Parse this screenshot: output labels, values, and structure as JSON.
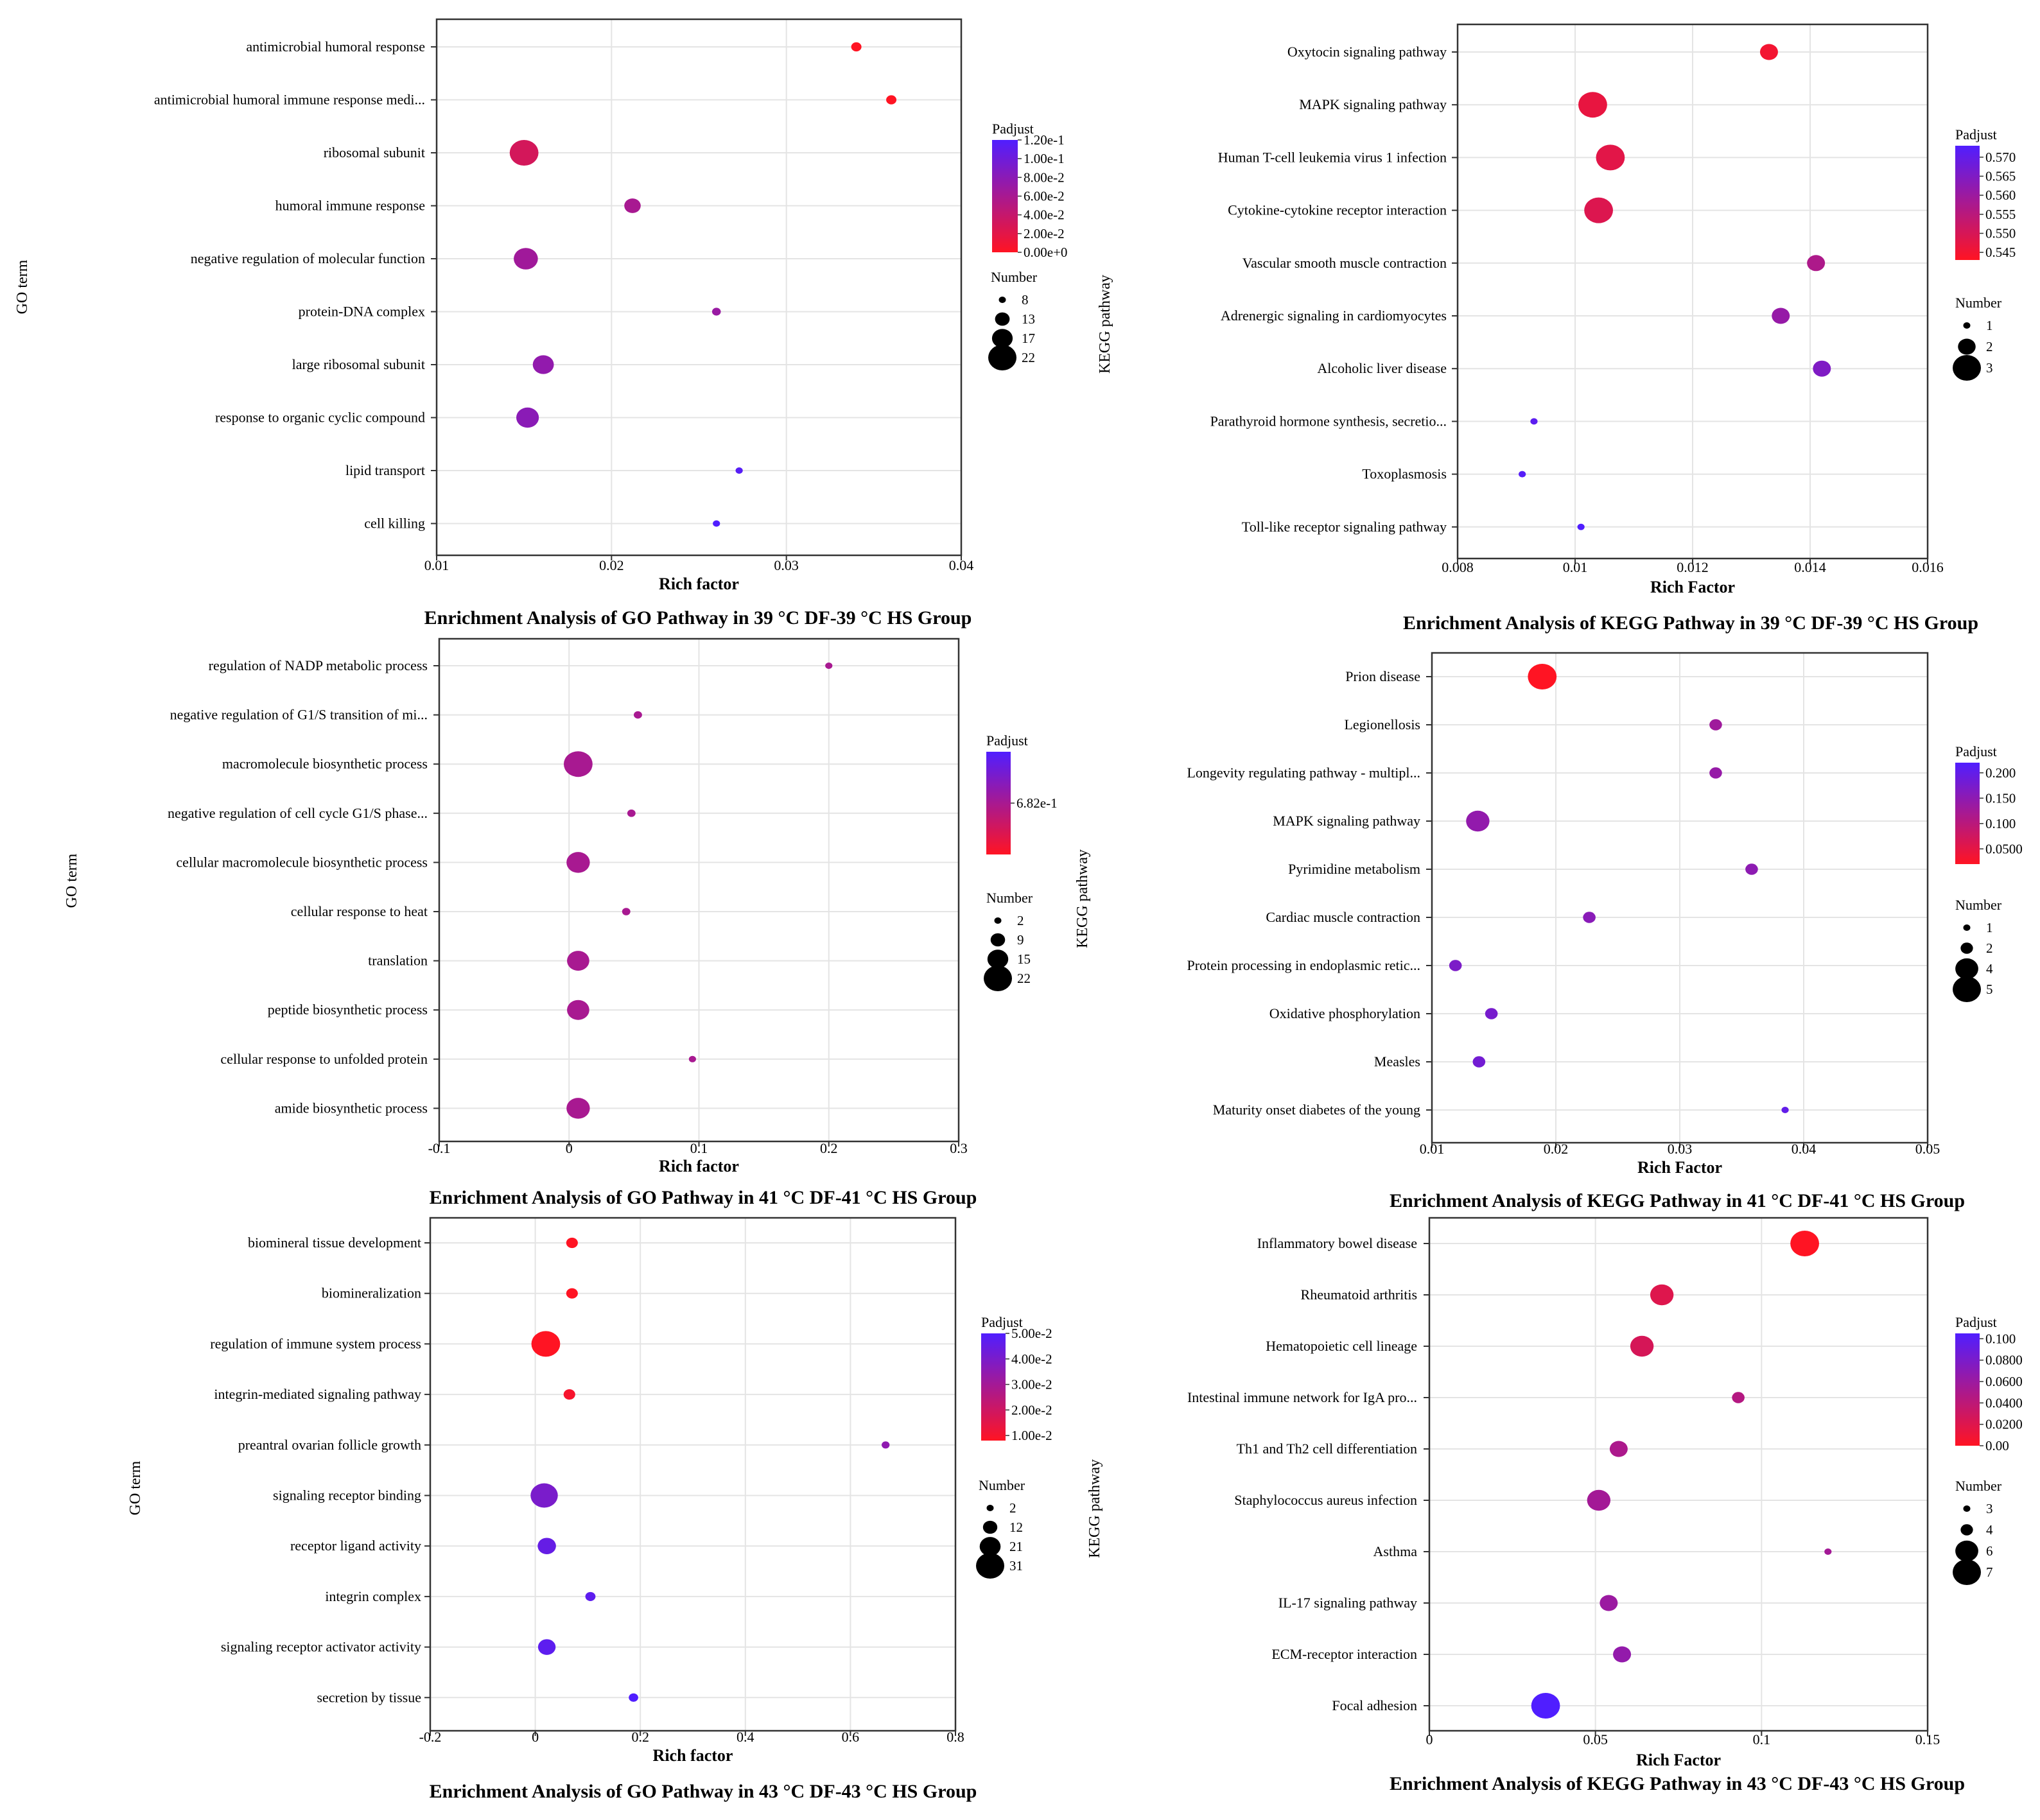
{
  "chart_data": [
    {
      "type": "scatter",
      "title": "Enrichment Analysis of GO Pathway in 39 °C DF-39 °C HS Group",
      "xlabel": "Rich factor",
      "ylabel": "GO term",
      "xlim": [
        0.01,
        0.04
      ],
      "xticks": [
        0.01,
        0.02,
        0.03,
        0.04
      ],
      "xtick_labels": [
        "0.01",
        "0.02",
        "0.03",
        "0.04"
      ],
      "grid": true,
      "categories": [
        "antimicrobial humoral response",
        "antimicrobial humoral immune response medi...",
        "ribosomal subunit",
        "humoral immune response",
        "negative regulation of molecular function",
        "protein-DNA complex",
        "large ribosomal subunit",
        "response to organic cyclic compound",
        "lipid transport",
        "cell killing"
      ],
      "x": [
        0.034,
        0.036,
        0.015,
        0.0212,
        0.0151,
        0.026,
        0.0161,
        0.0152,
        0.0273,
        0.026
      ],
      "padjust": [
        0.0,
        0.0,
        0.03,
        0.06,
        0.065,
        0.07,
        0.075,
        0.08,
        0.115,
        0.12
      ],
      "number": [
        10,
        10,
        22,
        14,
        19,
        9,
        17,
        18,
        8,
        8
      ],
      "color_legend": {
        "title": "Padjust",
        "min": 0.0,
        "max": 0.12,
        "tick_values": [
          0.12,
          0.1,
          0.08,
          0.06,
          0.04,
          0.02,
          0.0
        ],
        "tick_labels": [
          "1.20e-1",
          "1.00e-1",
          "8.00e-2",
          "6.00e-2",
          "4.00e-2",
          "2.00e-2",
          "0.00e+0"
        ]
      },
      "size_legend": {
        "title": "Number",
        "values": [
          8,
          13,
          17,
          22
        ],
        "labels": [
          "8",
          "13",
          "17",
          "22"
        ]
      }
    },
    {
      "type": "scatter",
      "title": "Enrichment Analysis of KEGG Pathway in 39 °C DF-39 °C HS Group",
      "xlabel": "Rich Factor",
      "ylabel": "KEGG pathway",
      "xlim": [
        0.008,
        0.016
      ],
      "xticks": [
        0.008,
        0.01,
        0.012,
        0.014,
        0.016
      ],
      "xtick_labels": [
        "0.008",
        "0.01",
        "0.012",
        "0.014",
        "0.016"
      ],
      "grid": true,
      "categories": [
        "Oxytocin signaling pathway",
        "MAPK signaling pathway",
        "Human T-cell leukemia virus 1 infection",
        "Cytokine-cytokine receptor interaction",
        "Vascular smooth muscle contraction",
        "Adrenergic signaling in cardiomyocytes",
        "Alcoholic liver disease",
        "Parathyroid hormone synthesis, secretio...",
        "Toxoplasmosis",
        "Toll-like receptor signaling pathway"
      ],
      "x": [
        0.0133,
        0.0103,
        0.0106,
        0.0104,
        0.0141,
        0.0135,
        0.0142,
        0.0093,
        0.0091,
        0.0101
      ],
      "padjust": [
        0.545,
        0.547,
        0.548,
        0.549,
        0.557,
        0.561,
        0.565,
        0.571,
        0.572,
        0.573
      ],
      "number": [
        2,
        3,
        3,
        3,
        2,
        2,
        2,
        1,
        1,
        1
      ],
      "color_legend": {
        "title": "Padjust",
        "min": 0.543,
        "max": 0.573,
        "tick_values": [
          0.57,
          0.565,
          0.56,
          0.555,
          0.55,
          0.545
        ],
        "tick_labels": [
          "0.570",
          "0.565",
          "0.560",
          "0.555",
          "0.550",
          "0.545"
        ]
      },
      "size_legend": {
        "title": "Number",
        "values": [
          1,
          2,
          3
        ],
        "labels": [
          "1",
          "2",
          "3"
        ]
      }
    },
    {
      "type": "scatter",
      "title": "Enrichment Analysis of GO Pathway in 41 °C DF-41 °C HS Group",
      "xlabel": "Rich factor",
      "ylabel": "GO term",
      "xlim": [
        -0.1,
        0.3
      ],
      "xticks": [
        -0.1,
        0,
        0.1,
        0.2,
        0.3
      ],
      "xtick_labels": [
        "-0.1",
        "0",
        "0.1",
        "0.2",
        "0.3"
      ],
      "grid": true,
      "categories": [
        "regulation of NADP metabolic process",
        "negative regulation of G1/S transition of mi...",
        "macromolecule biosynthetic process",
        "negative regulation of cell cycle G1/S phase...",
        "cellular macromolecule biosynthetic process",
        "cellular response to heat",
        "translation",
        "peptide biosynthetic process",
        "cellular response to unfolded protein",
        "amide biosynthetic process"
      ],
      "x": [
        0.2,
        0.053,
        0.007,
        0.048,
        0.007,
        0.044,
        0.007,
        0.007,
        0.095,
        0.007
      ],
      "padjust": [
        0.682,
        0.682,
        0.682,
        0.682,
        0.682,
        0.682,
        0.682,
        0.682,
        0.682,
        0.682
      ],
      "number": [
        2,
        3,
        22,
        3,
        17,
        3,
        16,
        16,
        2,
        17
      ],
      "color_legend": {
        "title": "Padjust",
        "min": 0.68,
        "max": 0.684,
        "tick_values": [
          0.682
        ],
        "tick_labels": [
          "6.82e-1"
        ]
      },
      "size_legend": {
        "title": "Number",
        "values": [
          2,
          9,
          15,
          22
        ],
        "labels": [
          "2",
          "9",
          "15",
          "22"
        ]
      }
    },
    {
      "type": "scatter",
      "title": "Enrichment Analysis of KEGG Pathway in 41 °C DF-41 °C HS Group",
      "xlabel": "Rich Factor",
      "ylabel": "KEGG pathway",
      "xlim": [
        0.01,
        0.05
      ],
      "xticks": [
        0.01,
        0.02,
        0.03,
        0.04,
        0.05
      ],
      "xtick_labels": [
        "0.01",
        "0.02",
        "0.03",
        "0.04",
        "0.05"
      ],
      "grid": true,
      "categories": [
        "Prion disease",
        "Legionellosis",
        "Longevity regulating pathway - multipl...",
        "MAPK signaling pathway",
        "Pyrimidine metabolism",
        "Cardiac muscle contraction",
        "Protein processing in endoplasmic retic...",
        "Oxidative phosphorylation",
        "Measles",
        "Maturity onset diabetes of the young"
      ],
      "x": [
        0.0189,
        0.0329,
        0.0329,
        0.0137,
        0.0358,
        0.0227,
        0.0119,
        0.0148,
        0.0138,
        0.0385
      ],
      "padjust": [
        0.02,
        0.13,
        0.14,
        0.145,
        0.15,
        0.155,
        0.17,
        0.175,
        0.18,
        0.2
      ],
      "number": [
        5,
        2,
        2,
        4,
        2,
        2,
        2,
        2,
        2,
        1
      ],
      "color_legend": {
        "title": "Padjust",
        "min": 0.02,
        "max": 0.22,
        "tick_values": [
          0.2,
          0.15,
          0.1,
          0.05
        ],
        "tick_labels": [
          "0.200",
          "0.150",
          "0.100",
          "0.0500"
        ]
      },
      "size_legend": {
        "title": "Number",
        "values": [
          1,
          2,
          4,
          5
        ],
        "labels": [
          "1",
          "2",
          "4",
          "5"
        ]
      }
    },
    {
      "type": "scatter",
      "title": "Enrichment Analysis of GO Pathway in 43 °C DF-43 °C HS Group",
      "xlabel": "Rich factor",
      "ylabel": "GO term",
      "xlim": [
        -0.2,
        0.8
      ],
      "xticks": [
        -0.2,
        0,
        0.2,
        0.4,
        0.6,
        0.8
      ],
      "xtick_labels": [
        "-0.2",
        "0",
        "0.2",
        "0.4",
        "0.6",
        "0.8"
      ],
      "grid": true,
      "categories": [
        "biomineral tissue development",
        "biomineralization",
        "regulation of immune system process",
        "integrin-mediated signaling pathway",
        "preantral ovarian follicle growth",
        "signaling receptor binding",
        "receptor ligand activity",
        "integrin complex",
        "signaling receptor activator activity",
        "secretion by tissue"
      ],
      "x": [
        0.07,
        0.07,
        0.02,
        0.065,
        0.667,
        0.017,
        0.022,
        0.105,
        0.022,
        0.187
      ],
      "padjust": [
        0.008,
        0.008,
        0.008,
        0.01,
        0.035,
        0.04,
        0.045,
        0.047,
        0.047,
        0.05
      ],
      "number": [
        8,
        8,
        31,
        8,
        3,
        29,
        17,
        6,
        16,
        5
      ],
      "color_legend": {
        "title": "Padjust",
        "min": 0.008,
        "max": 0.05,
        "tick_values": [
          0.05,
          0.04,
          0.03,
          0.02,
          0.01
        ],
        "tick_labels": [
          "5.00e-2",
          "4.00e-2",
          "3.00e-2",
          "2.00e-2",
          "1.00e-2"
        ]
      },
      "size_legend": {
        "title": "Number",
        "values": [
          2,
          12,
          21,
          31
        ],
        "labels": [
          "2",
          "12",
          "21",
          "31"
        ]
      }
    },
    {
      "type": "scatter",
      "title": "Enrichment Analysis of KEGG Pathway in 43 °C DF-43 °C HS Group",
      "xlabel": "Rich Factor",
      "ylabel": "KEGG pathway",
      "xlim": [
        0,
        0.15
      ],
      "xticks": [
        0,
        0.05,
        0.1,
        0.15
      ],
      "xtick_labels": [
        "0",
        "0.05",
        "0.1",
        "0.15"
      ],
      "grid": true,
      "categories": [
        "Inflammatory bowel disease",
        "Rheumatoid arthritis",
        "Hematopoietic cell lineage",
        "Intestinal immune network for IgA pro...",
        "Th1 and Th2 cell differentiation",
        "Staphylococcus aureus infection",
        "Asthma",
        "IL-17 signaling pathway",
        "ECM-receptor interaction",
        "Focal adhesion"
      ],
      "x": [
        0.113,
        0.07,
        0.064,
        0.093,
        0.057,
        0.051,
        0.12,
        0.054,
        0.058,
        0.035
      ],
      "padjust": [
        0.0,
        0.02,
        0.025,
        0.045,
        0.05,
        0.055,
        0.055,
        0.06,
        0.065,
        0.105
      ],
      "number": [
        7,
        6,
        6,
        4,
        5,
        6,
        3,
        5,
        5,
        7
      ],
      "color_legend": {
        "title": "Padjust",
        "min": 0.0,
        "max": 0.105,
        "tick_values": [
          0.1,
          0.08,
          0.06,
          0.04,
          0.02,
          0.0
        ],
        "tick_labels": [
          "0.100",
          "0.0800",
          "0.0600",
          "0.0400",
          "0.0200",
          "0.00"
        ]
      },
      "size_legend": {
        "title": "Number",
        "values": [
          3,
          4,
          6,
          7
        ],
        "labels": [
          "3",
          "4",
          "6",
          "7"
        ]
      }
    }
  ]
}
